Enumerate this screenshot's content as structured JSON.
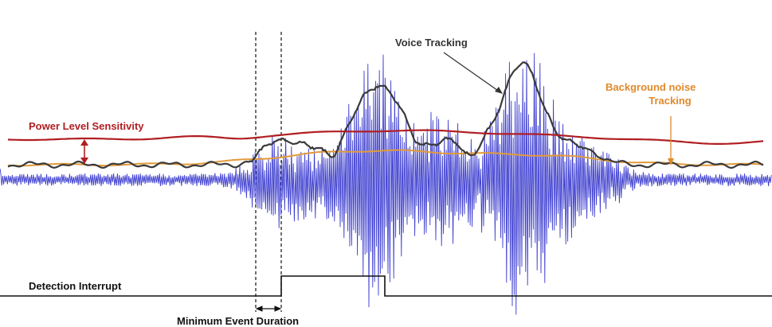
{
  "labels": {
    "power_level": "Power Level Sensitivity",
    "voice_tracking": "Voice Tracking",
    "bg_noise_line1": "Background noise",
    "bg_noise_line2": "Tracking",
    "detection_interrupt": "Detection Interrupt",
    "min_event_duration": "Minimum Event Duration"
  },
  "colors": {
    "waveform": "#3c3ccf",
    "power_level": "#b01e22",
    "voice_tracking": "#3a3a3a",
    "background_noise": "#e39a3a",
    "power_label": "#b01e22",
    "bg_noise_label": "#e0892b",
    "voice_label": "#333333",
    "interrupt": "#111111"
  }
}
